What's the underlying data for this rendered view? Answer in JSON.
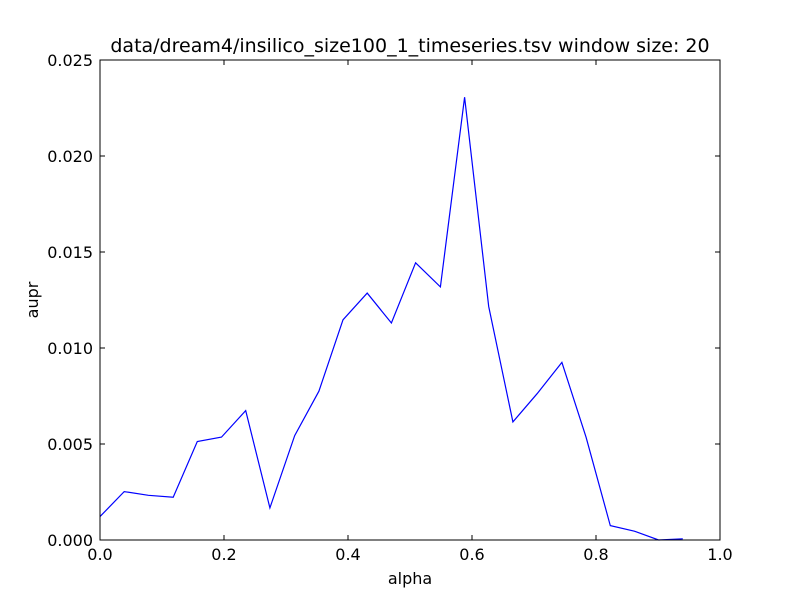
{
  "chart_data": {
    "type": "line",
    "title": "data/dream4/insilico_size100_1_timeseries.tsv window size: 20",
    "xlabel": "alpha",
    "ylabel": "aupr",
    "xlim": [
      0.0,
      1.0
    ],
    "ylim": [
      0.0,
      0.025
    ],
    "xticks": [
      "0.0",
      "0.2",
      "0.4",
      "0.6",
      "0.8",
      "1.0"
    ],
    "yticks": [
      "0.000",
      "0.005",
      "0.010",
      "0.015",
      "0.020",
      "0.025"
    ],
    "grid": false,
    "series": [
      {
        "color": "#0000ff",
        "x": [
          0.0,
          0.039,
          0.078,
          0.118,
          0.157,
          0.196,
          0.235,
          0.274,
          0.314,
          0.353,
          0.392,
          0.431,
          0.47,
          0.509,
          0.549,
          0.588,
          0.627,
          0.666,
          0.705,
          0.745,
          0.784,
          0.823,
          0.862,
          0.901,
          0.94
        ],
        "y": [
          0.00122,
          0.00252,
          0.00233,
          0.00223,
          0.00513,
          0.00536,
          0.00674,
          0.00167,
          0.00544,
          0.00775,
          0.01147,
          0.01286,
          0.0113,
          0.01444,
          0.01318,
          0.02306,
          0.01216,
          0.00615,
          0.00762,
          0.00925,
          0.00535,
          0.00075,
          0.00046,
          0.0,
          6e-05
        ]
      }
    ]
  }
}
